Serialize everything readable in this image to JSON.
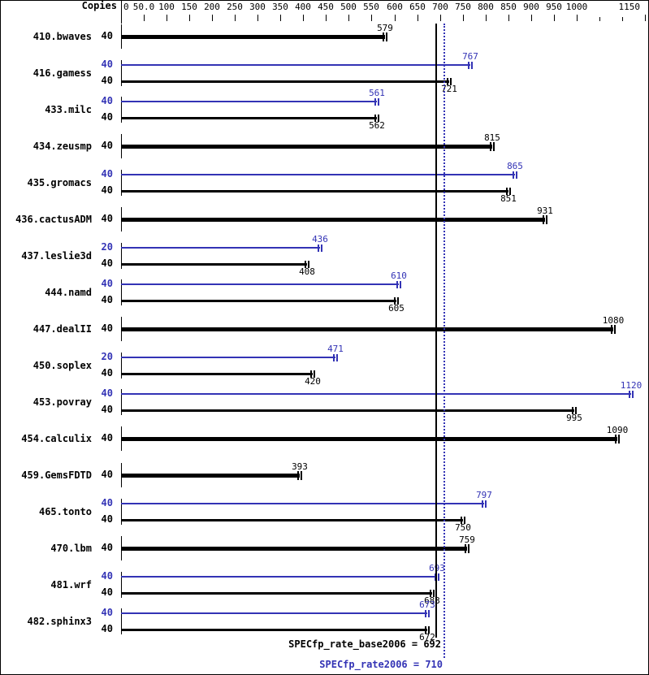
{
  "chart_data": {
    "type": "bar",
    "orientation": "horizontal",
    "axis_header": "Copies",
    "xlim": [
      0,
      1150
    ],
    "grid": false,
    "series_colors": {
      "peak": "#3333b5",
      "base": "#000000"
    },
    "ticks": [
      {
        "value": 0,
        "label": "0",
        "tick": false
      },
      {
        "value": 50,
        "label": "50.0"
      },
      {
        "value": 100,
        "label": "100"
      },
      {
        "value": 150,
        "label": "150"
      },
      {
        "value": 200,
        "label": "200"
      },
      {
        "value": 250,
        "label": "250"
      },
      {
        "value": 300,
        "label": "300"
      },
      {
        "value": 350,
        "label": "350"
      },
      {
        "value": 400,
        "label": "400"
      },
      {
        "value": 450,
        "label": "450"
      },
      {
        "value": 500,
        "label": "500"
      },
      {
        "value": 550,
        "label": "550"
      },
      {
        "value": 600,
        "label": "600"
      },
      {
        "value": 650,
        "label": "650"
      },
      {
        "value": 700,
        "label": "700"
      },
      {
        "value": 750,
        "label": "750"
      },
      {
        "value": 800,
        "label": "800"
      },
      {
        "value": 850,
        "label": "850"
      },
      {
        "value": 900,
        "label": "900"
      },
      {
        "value": 950,
        "label": "950"
      },
      {
        "value": 1000,
        "label": "1000"
      },
      {
        "value": 1050,
        "label": "",
        "minor": true
      },
      {
        "value": 1100,
        "label": "",
        "minor": true
      },
      {
        "value": 1150,
        "label": "1150",
        "align": "right"
      }
    ],
    "benchmarks": [
      {
        "name": "410.bwaves",
        "bars": [
          {
            "series": "base",
            "copies": "40",
            "value": 579
          }
        ]
      },
      {
        "name": "416.gamess",
        "bars": [
          {
            "series": "peak",
            "copies": "40",
            "value": 767
          },
          {
            "series": "base",
            "copies": "40",
            "value": 721
          }
        ]
      },
      {
        "name": "433.milc",
        "bars": [
          {
            "series": "peak",
            "copies": "40",
            "value": 561
          },
          {
            "series": "base",
            "copies": "40",
            "value": 562
          }
        ]
      },
      {
        "name": "434.zeusmp",
        "bars": [
          {
            "series": "base",
            "copies": "40",
            "value": 815
          }
        ]
      },
      {
        "name": "435.gromacs",
        "bars": [
          {
            "series": "peak",
            "copies": "40",
            "value": 865
          },
          {
            "series": "base",
            "copies": "40",
            "value": 851
          }
        ]
      },
      {
        "name": "436.cactusADM",
        "bars": [
          {
            "series": "base",
            "copies": "40",
            "value": 931
          }
        ]
      },
      {
        "name": "437.leslie3d",
        "bars": [
          {
            "series": "peak",
            "copies": "20",
            "value": 436
          },
          {
            "series": "base",
            "copies": "40",
            "value": 408
          }
        ]
      },
      {
        "name": "444.namd",
        "bars": [
          {
            "series": "peak",
            "copies": "40",
            "value": 610
          },
          {
            "series": "base",
            "copies": "40",
            "value": 605
          }
        ]
      },
      {
        "name": "447.dealII",
        "bars": [
          {
            "series": "base",
            "copies": "40",
            "value": 1080
          }
        ]
      },
      {
        "name": "450.soplex",
        "bars": [
          {
            "series": "peak",
            "copies": "20",
            "value": 471
          },
          {
            "series": "base",
            "copies": "40",
            "value": 420
          }
        ]
      },
      {
        "name": "453.povray",
        "bars": [
          {
            "series": "peak",
            "copies": "40",
            "value": 1120
          },
          {
            "series": "base",
            "copies": "40",
            "value": 995
          }
        ]
      },
      {
        "name": "454.calculix",
        "bars": [
          {
            "series": "base",
            "copies": "40",
            "value": 1090
          }
        ]
      },
      {
        "name": "459.GemsFDTD",
        "bars": [
          {
            "series": "base",
            "copies": "40",
            "value": 393
          }
        ]
      },
      {
        "name": "465.tonto",
        "bars": [
          {
            "series": "peak",
            "copies": "40",
            "value": 797
          },
          {
            "series": "base",
            "copies": "40",
            "value": 750
          }
        ]
      },
      {
        "name": "470.lbm",
        "bars": [
          {
            "series": "base",
            "copies": "40",
            "value": 759
          }
        ]
      },
      {
        "name": "481.wrf",
        "bars": [
          {
            "series": "peak",
            "copies": "40",
            "value": 693
          },
          {
            "series": "base",
            "copies": "40",
            "value": 683
          }
        ]
      },
      {
        "name": "482.sphinx3",
        "bars": [
          {
            "series": "peak",
            "copies": "40",
            "value": 673
          },
          {
            "series": "base",
            "copies": "40",
            "value": 672
          }
        ]
      }
    ],
    "reference_lines": [
      {
        "series": "base",
        "value": 692,
        "style": "solid"
      },
      {
        "series": "peak",
        "value": 710,
        "style": "dotted"
      }
    ],
    "summaries": {
      "base": "SPECfp_rate_base2006 = 692",
      "peak": "SPECfp_rate2006 = 710"
    }
  }
}
